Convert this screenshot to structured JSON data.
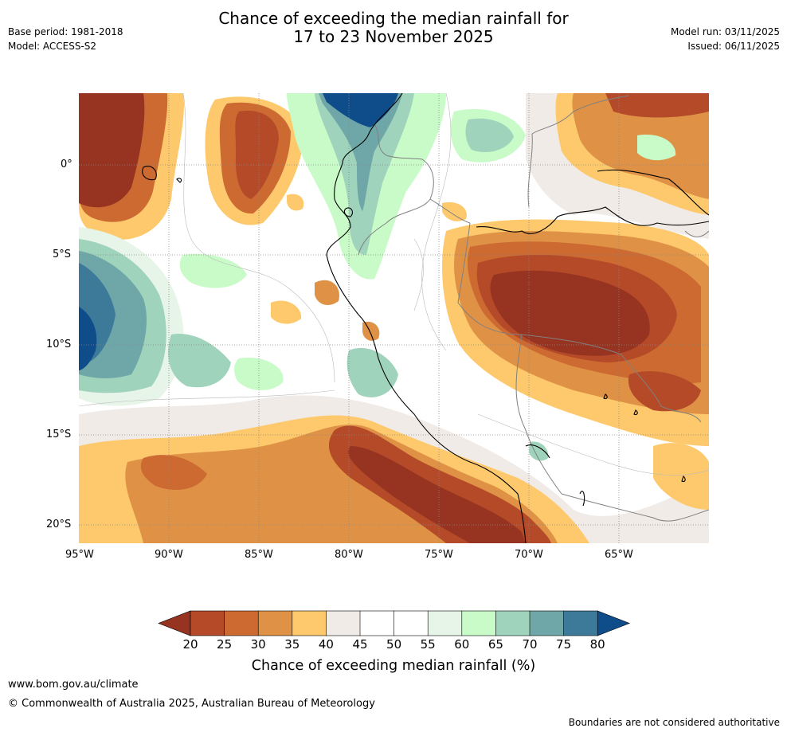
{
  "header": {
    "title_line1": "Chance of exceeding the median rainfall for",
    "title_line2": "17 to 23 November 2025",
    "base_period": "Base period: 1981-2018",
    "model": "Model: ACCESS-S2",
    "model_run": "Model run: 03/11/2025",
    "issued": "Issued: 06/11/2025"
  },
  "map": {
    "lat_labels": [
      "0°",
      "5°S",
      "10°S",
      "15°S",
      "20°S"
    ],
    "lon_labels": [
      "95°W",
      "90°W",
      "85°W",
      "80°W",
      "75°W",
      "70°W",
      "65°W"
    ],
    "extent": {
      "lon_min": -95,
      "lon_max": -60,
      "lat_min": -21,
      "lat_max": 4
    }
  },
  "colorbar": {
    "ticks": [
      "20",
      "25",
      "30",
      "35",
      "40",
      "45",
      "50",
      "55",
      "60",
      "65",
      "70",
      "75",
      "80"
    ],
    "title": "Chance of exceeding median rainfall (%)",
    "colors": [
      "#973421",
      "#b44a28",
      "#cc6a32",
      "#df9246",
      "#fdc96c",
      "#f0ebe7",
      "#ffffff",
      "#ffffff",
      "#e7f5e8",
      "#c9fbc8",
      "#9fd3bb",
      "#6fa7a8",
      "#3d7a99",
      "#0f4c8a"
    ]
  },
  "footer": {
    "url": "www.bom.gov.au/climate",
    "copyright": "© Commonwealth of Australia 2025, Australian Bureau of Meteorology",
    "disclaimer": "Boundaries are not considered authoritative"
  }
}
